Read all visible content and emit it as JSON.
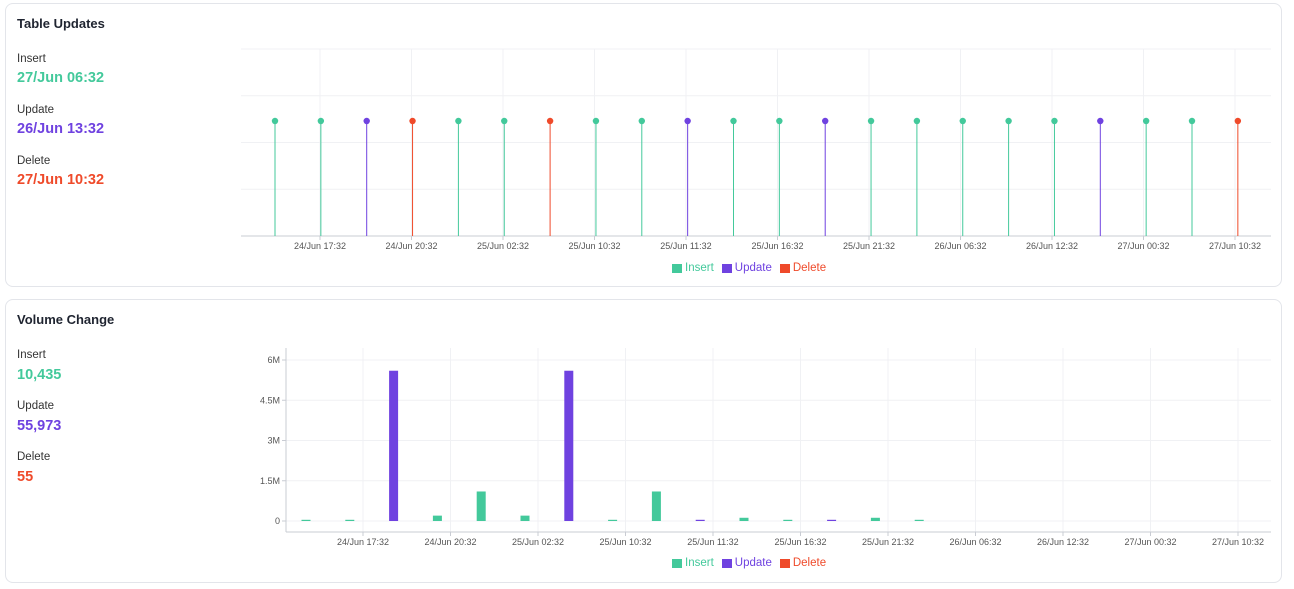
{
  "colors": {
    "insert": "#43c99b",
    "update": "#6f42e0",
    "delete": "#ef4a2a"
  },
  "legend": [
    {
      "key": "insert",
      "label": "Insert"
    },
    {
      "key": "update",
      "label": "Update"
    },
    {
      "key": "delete",
      "label": "Delete"
    }
  ],
  "updates_card": {
    "title": "Table Updates",
    "stats": [
      {
        "label": "Insert",
        "value": "27/Jun 06:32",
        "key": "insert"
      },
      {
        "label": "Update",
        "value": "26/Jun 13:32",
        "key": "update"
      },
      {
        "label": "Delete",
        "value": "27/Jun 10:32",
        "key": "delete"
      }
    ]
  },
  "volume_card": {
    "title": "Volume Change",
    "stats": [
      {
        "label": "Insert",
        "value": "10,435",
        "key": "insert"
      },
      {
        "label": "Update",
        "value": "55,973",
        "key": "update"
      },
      {
        "label": "Delete",
        "value": "55",
        "key": "delete"
      }
    ]
  },
  "chart_data": [
    {
      "type": "scatter",
      "title": "Table Updates",
      "x_tick_labels": [
        "24/Jun 17:32",
        "24/Jun 20:32",
        "25/Jun 02:32",
        "25/Jun 10:32",
        "25/Jun 11:32",
        "25/Jun 16:32",
        "25/Jun 21:32",
        "26/Jun 06:32",
        "26/Jun 12:32",
        "27/Jun 00:32",
        "27/Jun 10:32"
      ],
      "events": [
        "insert",
        "insert",
        "update",
        "delete",
        "insert",
        "insert",
        "delete",
        "insert",
        "insert",
        "update",
        "insert",
        "insert",
        "update",
        "insert",
        "insert",
        "insert",
        "insert",
        "insert",
        "update",
        "insert",
        "insert",
        "delete"
      ],
      "legend_position": "bottom-center",
      "grid": true
    },
    {
      "type": "bar",
      "title": "Volume Change",
      "x_tick_labels": [
        "24/Jun 17:32",
        "24/Jun 20:32",
        "25/Jun 02:32",
        "25/Jun 10:32",
        "25/Jun 11:32",
        "25/Jun 16:32",
        "25/Jun 21:32",
        "26/Jun 06:32",
        "26/Jun 12:32",
        "27/Jun 00:32",
        "27/Jun 10:32"
      ],
      "y_ticks": [
        "0",
        "1.5M",
        "3M",
        "4.5M",
        "6M"
      ],
      "ylim": [
        0,
        6400000
      ],
      "bars": [
        {
          "series": "insert",
          "value": 40000
        },
        {
          "series": "insert",
          "value": 40000
        },
        {
          "series": "update",
          "value": 5600000
        },
        {
          "series": "insert",
          "value": 200000
        },
        {
          "series": "insert",
          "value": 1100000
        },
        {
          "series": "insert",
          "value": 200000
        },
        {
          "series": "update",
          "value": 5600000
        },
        {
          "series": "insert",
          "value": 40000
        },
        {
          "series": "insert",
          "value": 1100000
        },
        {
          "series": "update",
          "value": 40000
        },
        {
          "series": "insert",
          "value": 120000
        },
        {
          "series": "insert",
          "value": 15000
        },
        {
          "series": "update",
          "value": 40000
        },
        {
          "series": "insert",
          "value": 120000
        },
        {
          "series": "insert",
          "value": 15000
        }
      ],
      "legend_position": "bottom-center",
      "grid": true
    }
  ]
}
